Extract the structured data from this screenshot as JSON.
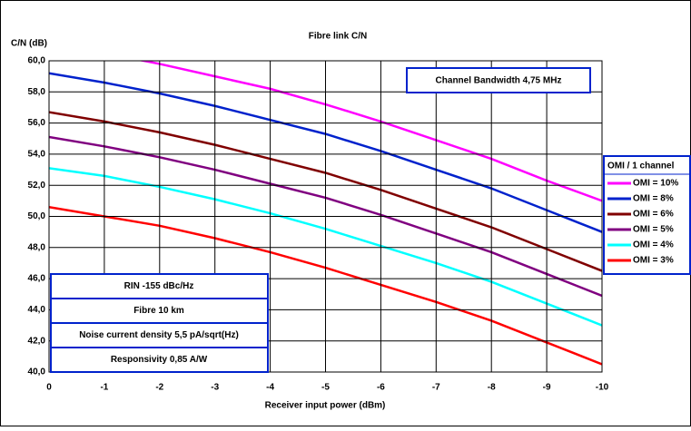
{
  "chart_data": {
    "type": "line",
    "title": "Fibre link C/N",
    "y_label": "C/N (dB)",
    "x_label": "Receiver input power (dBm)",
    "x": [
      0,
      -1,
      -2,
      -3,
      -4,
      -5,
      -6,
      -7,
      -8,
      -9,
      -10
    ],
    "xlim": [
      0,
      -10
    ],
    "xticks": [
      0,
      -1,
      -2,
      -3,
      -4,
      -5,
      -6,
      -7,
      -8,
      -9,
      -10
    ],
    "ylim": [
      40,
      60
    ],
    "yticks": [
      {
        "value": 40,
        "label": "40,0"
      },
      {
        "value": 42,
        "label": "42,0"
      },
      {
        "value": 44,
        "label": "44,0"
      },
      {
        "value": 46,
        "label": "46,0"
      },
      {
        "value": 48,
        "label": "48,0"
      },
      {
        "value": 50,
        "label": "50,0"
      },
      {
        "value": 52,
        "label": "52,0"
      },
      {
        "value": 54,
        "label": "54,0"
      },
      {
        "value": 56,
        "label": "56,0"
      },
      {
        "value": 58,
        "label": "58,0"
      },
      {
        "value": 60,
        "label": "60,0"
      }
    ],
    "grid": true,
    "legend_title": "OMI / 1 channel",
    "legend_position": "right",
    "series": [
      {
        "name": "OMI = 10%",
        "color": "#ff00ff",
        "values": [
          61.1,
          60.5,
          59.8,
          59.0,
          58.2,
          57.2,
          56.1,
          54.9,
          53.7,
          52.3,
          51.0
        ]
      },
      {
        "name": "OMI = 8%",
        "color": "#0022cc",
        "values": [
          59.2,
          58.6,
          57.9,
          57.1,
          56.2,
          55.3,
          54.2,
          53.0,
          51.8,
          50.4,
          49.0
        ]
      },
      {
        "name": "OMI = 6%",
        "color": "#800000",
        "values": [
          56.7,
          56.1,
          55.4,
          54.6,
          53.7,
          52.8,
          51.7,
          50.5,
          49.3,
          47.9,
          46.5
        ]
      },
      {
        "name": "OMI = 5%",
        "color": "#800080",
        "values": [
          55.1,
          54.5,
          53.8,
          53.0,
          52.1,
          51.2,
          50.1,
          48.9,
          47.7,
          46.3,
          44.9
        ]
      },
      {
        "name": "OMI = 4%",
        "color": "#00ffff",
        "values": [
          53.1,
          52.6,
          51.9,
          51.1,
          50.2,
          49.2,
          48.1,
          47.0,
          45.8,
          44.4,
          43.0
        ]
      },
      {
        "name": "OMI = 3%",
        "color": "#ff0000",
        "values": [
          50.6,
          50.0,
          49.4,
          48.6,
          47.7,
          46.7,
          45.6,
          44.5,
          43.3,
          41.9,
          40.5
        ]
      }
    ],
    "bandwidth_note": "Channel Bandwidth 4,75 MHz",
    "annotations": [
      "RIN  -155 dBc/Hz",
      "Fibre 10 km",
      "Noise current density 5,5 pA/sqrt(Hz)",
      "Responsivity 0,85 A/W"
    ]
  }
}
